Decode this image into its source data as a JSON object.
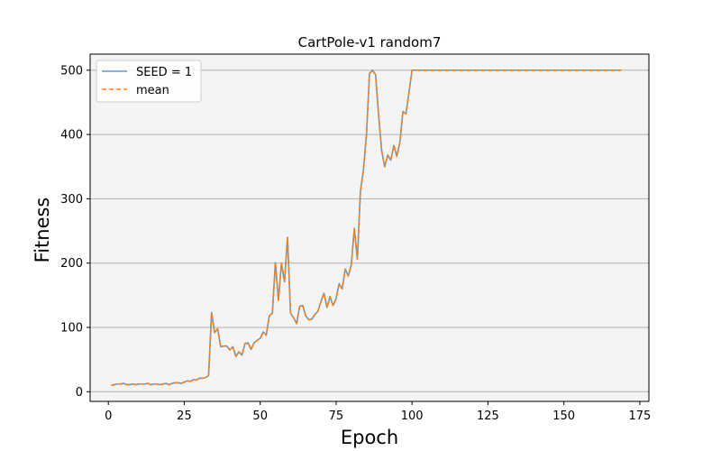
{
  "chart_data": {
    "type": "line",
    "title": "CartPole-v1 random7",
    "xlabel": "Epoch",
    "ylabel": "Fitness",
    "xlim": [
      -6,
      178
    ],
    "ylim": [
      -15,
      525
    ],
    "xticks": [
      0,
      25,
      50,
      75,
      100,
      125,
      150,
      175
    ],
    "yticks": [
      0,
      100,
      200,
      300,
      400,
      500
    ],
    "grid": "horizontal",
    "legend_position": "upper-left",
    "series": [
      {
        "name": "SEED = 1",
        "color": "#5b9bd5",
        "style": "solid",
        "x": [
          1,
          2,
          3,
          4,
          5,
          6,
          7,
          8,
          9,
          10,
          11,
          12,
          13,
          14,
          15,
          16,
          17,
          18,
          19,
          20,
          21,
          22,
          23,
          24,
          25,
          26,
          27,
          28,
          29,
          30,
          31,
          32,
          33,
          34,
          35,
          36,
          37,
          38,
          39,
          40,
          41,
          42,
          43,
          44,
          45,
          46,
          47,
          48,
          49,
          50,
          51,
          52,
          53,
          54,
          55,
          56,
          57,
          58,
          59,
          60,
          61,
          62,
          63,
          64,
          65,
          66,
          67,
          68,
          69,
          70,
          71,
          72,
          73,
          74,
          75,
          76,
          77,
          78,
          79,
          80,
          81,
          82,
          83,
          84,
          85,
          86,
          87,
          88,
          89,
          90,
          91,
          92,
          93,
          94,
          95,
          96,
          97,
          98,
          99,
          100,
          169
        ],
        "y": [
          10,
          11,
          12,
          12,
          13,
          11,
          11,
          12,
          11,
          12,
          12,
          12,
          13,
          11,
          12,
          12,
          11,
          12,
          13,
          11,
          13,
          14,
          14,
          13,
          15,
          17,
          16,
          19,
          18,
          21,
          21,
          22,
          25,
          123,
          92,
          98,
          70,
          71,
          71,
          65,
          70,
          55,
          62,
          57,
          75,
          76,
          66,
          76,
          80,
          83,
          93,
          88,
          118,
          122,
          201,
          142,
          200,
          171,
          240,
          122,
          115,
          106,
          133,
          134,
          118,
          112,
          113,
          120,
          125,
          140,
          153,
          131,
          148,
          134,
          145,
          168,
          160,
          191,
          180,
          197,
          254,
          206,
          311,
          345,
          400,
          495,
          500,
          493,
          430,
          375,
          350,
          368,
          360,
          383,
          366,
          388,
          436,
          432,
          465,
          500,
          500
        ]
      },
      {
        "name": "mean",
        "color": "#ff7f0e",
        "style": "dashed",
        "x": [
          1,
          2,
          3,
          4,
          5,
          6,
          7,
          8,
          9,
          10,
          11,
          12,
          13,
          14,
          15,
          16,
          17,
          18,
          19,
          20,
          21,
          22,
          23,
          24,
          25,
          26,
          27,
          28,
          29,
          30,
          31,
          32,
          33,
          34,
          35,
          36,
          37,
          38,
          39,
          40,
          41,
          42,
          43,
          44,
          45,
          46,
          47,
          48,
          49,
          50,
          51,
          52,
          53,
          54,
          55,
          56,
          57,
          58,
          59,
          60,
          61,
          62,
          63,
          64,
          65,
          66,
          67,
          68,
          69,
          70,
          71,
          72,
          73,
          74,
          75,
          76,
          77,
          78,
          79,
          80,
          81,
          82,
          83,
          84,
          85,
          86,
          87,
          88,
          89,
          90,
          91,
          92,
          93,
          94,
          95,
          96,
          97,
          98,
          99,
          100,
          169
        ],
        "y": [
          10,
          11,
          12,
          12,
          13,
          11,
          11,
          12,
          11,
          12,
          12,
          12,
          13,
          11,
          12,
          12,
          11,
          12,
          13,
          11,
          13,
          14,
          14,
          13,
          15,
          17,
          16,
          19,
          18,
          21,
          21,
          22,
          25,
          123,
          92,
          98,
          70,
          71,
          71,
          65,
          70,
          55,
          62,
          57,
          75,
          76,
          66,
          76,
          80,
          83,
          93,
          88,
          118,
          122,
          201,
          142,
          200,
          171,
          240,
          122,
          115,
          106,
          133,
          134,
          118,
          112,
          113,
          120,
          125,
          140,
          153,
          131,
          148,
          134,
          145,
          168,
          160,
          191,
          180,
          197,
          254,
          206,
          311,
          345,
          400,
          495,
          500,
          493,
          430,
          375,
          350,
          368,
          360,
          383,
          366,
          388,
          436,
          432,
          465,
          500,
          500
        ]
      }
    ]
  }
}
